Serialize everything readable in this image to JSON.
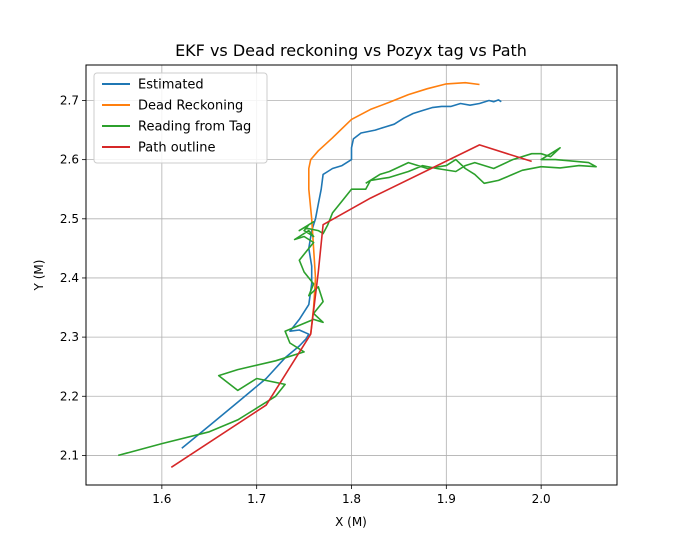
{
  "chart_data": {
    "type": "line",
    "title": "EKF vs Dead reckoning vs Pozyx tag vs Path",
    "xlabel": "X (M)",
    "ylabel": "Y (M)",
    "xlim": [
      1.52,
      2.08
    ],
    "ylim": [
      2.05,
      2.76
    ],
    "xticks": [
      1.6,
      1.7,
      1.8,
      1.9,
      2.0
    ],
    "yticks": [
      2.1,
      2.2,
      2.3,
      2.4,
      2.5,
      2.6,
      2.7
    ],
    "xtick_labels": [
      "1.6",
      "1.7",
      "1.8",
      "1.9",
      "2.0"
    ],
    "ytick_labels": [
      "2.1",
      "2.2",
      "2.3",
      "2.4",
      "2.5",
      "2.6",
      "2.7"
    ],
    "grid": true,
    "legend_position": "top-left",
    "series": [
      {
        "name": "Estimated",
        "color": "#1f77b4",
        "x": [
          1.621,
          1.65,
          1.68,
          1.71,
          1.73,
          1.745,
          1.752,
          1.755,
          1.745,
          1.735,
          1.745,
          1.755,
          1.758,
          1.758,
          1.755,
          1.758,
          1.762,
          1.765,
          1.768,
          1.77,
          1.775,
          1.78,
          1.79,
          1.8,
          1.8,
          1.802,
          1.81,
          1.825,
          1.835,
          1.845,
          1.855,
          1.865,
          1.875,
          1.885,
          1.895,
          1.905,
          1.915,
          1.925,
          1.935,
          1.945,
          1.95,
          1.955,
          1.958
        ],
        "y": [
          2.112,
          2.15,
          2.19,
          2.23,
          2.265,
          2.285,
          2.297,
          2.305,
          2.312,
          2.31,
          2.33,
          2.355,
          2.39,
          2.42,
          2.45,
          2.48,
          2.5,
          2.525,
          2.55,
          2.575,
          2.58,
          2.585,
          2.59,
          2.6,
          2.62,
          2.635,
          2.645,
          2.65,
          2.655,
          2.66,
          2.67,
          2.678,
          2.683,
          2.688,
          2.69,
          2.69,
          2.695,
          2.692,
          2.695,
          2.7,
          2.698,
          2.701,
          2.698
        ]
      },
      {
        "name": "Dead Reckoning",
        "color": "#ff7f0e",
        "x": [
          1.757,
          1.76,
          1.762,
          1.76,
          1.758,
          1.755,
          1.755,
          1.757,
          1.765,
          1.78,
          1.8,
          1.82,
          1.84,
          1.86,
          1.88,
          1.9,
          1.92,
          1.935
        ],
        "y": [
          2.305,
          2.35,
          2.4,
          2.45,
          2.5,
          2.55,
          2.585,
          2.6,
          2.615,
          2.637,
          2.668,
          2.685,
          2.697,
          2.71,
          2.72,
          2.728,
          2.73,
          2.727
        ]
      },
      {
        "name": "Reading from Tag",
        "color": "#2ca02c",
        "x": [
          1.554,
          1.6,
          1.65,
          1.68,
          1.69,
          1.7,
          1.71,
          1.72,
          1.73,
          1.7,
          1.68,
          1.66,
          1.68,
          1.72,
          1.75,
          1.735,
          1.73,
          1.76,
          1.77,
          1.76,
          1.77,
          1.765,
          1.755,
          1.76,
          1.75,
          1.745,
          1.755,
          1.76,
          1.75,
          1.74,
          1.755,
          1.76,
          1.75,
          1.755,
          1.76,
          1.745,
          1.75,
          1.765,
          1.77,
          1.775,
          1.78,
          1.79,
          1.8,
          1.815,
          1.82,
          1.84,
          1.86,
          1.875,
          1.89,
          1.91,
          1.92,
          1.93,
          1.95,
          1.97,
          1.99,
          2.0,
          2.01,
          2.02,
          2.0,
          2.015,
          2.03,
          2.05,
          2.058,
          2.04,
          2.02,
          2.0,
          1.98,
          1.97,
          1.955,
          1.94,
          1.93,
          1.92,
          1.91,
          1.9,
          1.88,
          1.86,
          1.84,
          1.83,
          1.815
        ],
        "y": [
          2.1,
          2.12,
          2.14,
          2.16,
          2.17,
          2.18,
          2.19,
          2.2,
          2.22,
          2.23,
          2.21,
          2.235,
          2.245,
          2.26,
          2.275,
          2.29,
          2.31,
          2.33,
          2.325,
          2.34,
          2.36,
          2.385,
          2.37,
          2.39,
          2.41,
          2.43,
          2.45,
          2.46,
          2.47,
          2.465,
          2.48,
          2.47,
          2.48,
          2.49,
          2.495,
          2.48,
          2.485,
          2.48,
          2.475,
          2.49,
          2.51,
          2.53,
          2.55,
          2.55,
          2.565,
          2.57,
          2.58,
          2.59,
          2.585,
          2.58,
          2.59,
          2.595,
          2.585,
          2.6,
          2.61,
          2.61,
          2.605,
          2.62,
          2.6,
          2.6,
          2.598,
          2.595,
          2.588,
          2.59,
          2.586,
          2.588,
          2.582,
          2.575,
          2.565,
          2.56,
          2.575,
          2.585,
          2.6,
          2.59,
          2.585,
          2.595,
          2.58,
          2.575,
          2.56
        ]
      },
      {
        "name": "Path outline",
        "color": "#d62728",
        "x": [
          1.61,
          1.71,
          1.757,
          1.765,
          1.77,
          1.82,
          1.935,
          1.99
        ],
        "y": [
          2.08,
          2.185,
          2.305,
          2.41,
          2.49,
          2.535,
          2.625,
          2.597
        ]
      }
    ]
  }
}
